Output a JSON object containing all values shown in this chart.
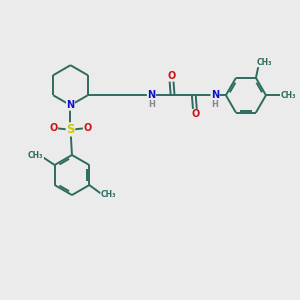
{
  "bg_color": "#ebebeb",
  "bond_color": "#2d6b5e",
  "N_color": "#1010cc",
  "O_color": "#cc1010",
  "S_color": "#cccc00",
  "H_color": "#888888",
  "font_size": 7.0,
  "figsize": [
    3.0,
    3.0
  ],
  "dpi": 100,
  "xlim": [
    0,
    10
  ],
  "ylim": [
    0,
    10
  ]
}
